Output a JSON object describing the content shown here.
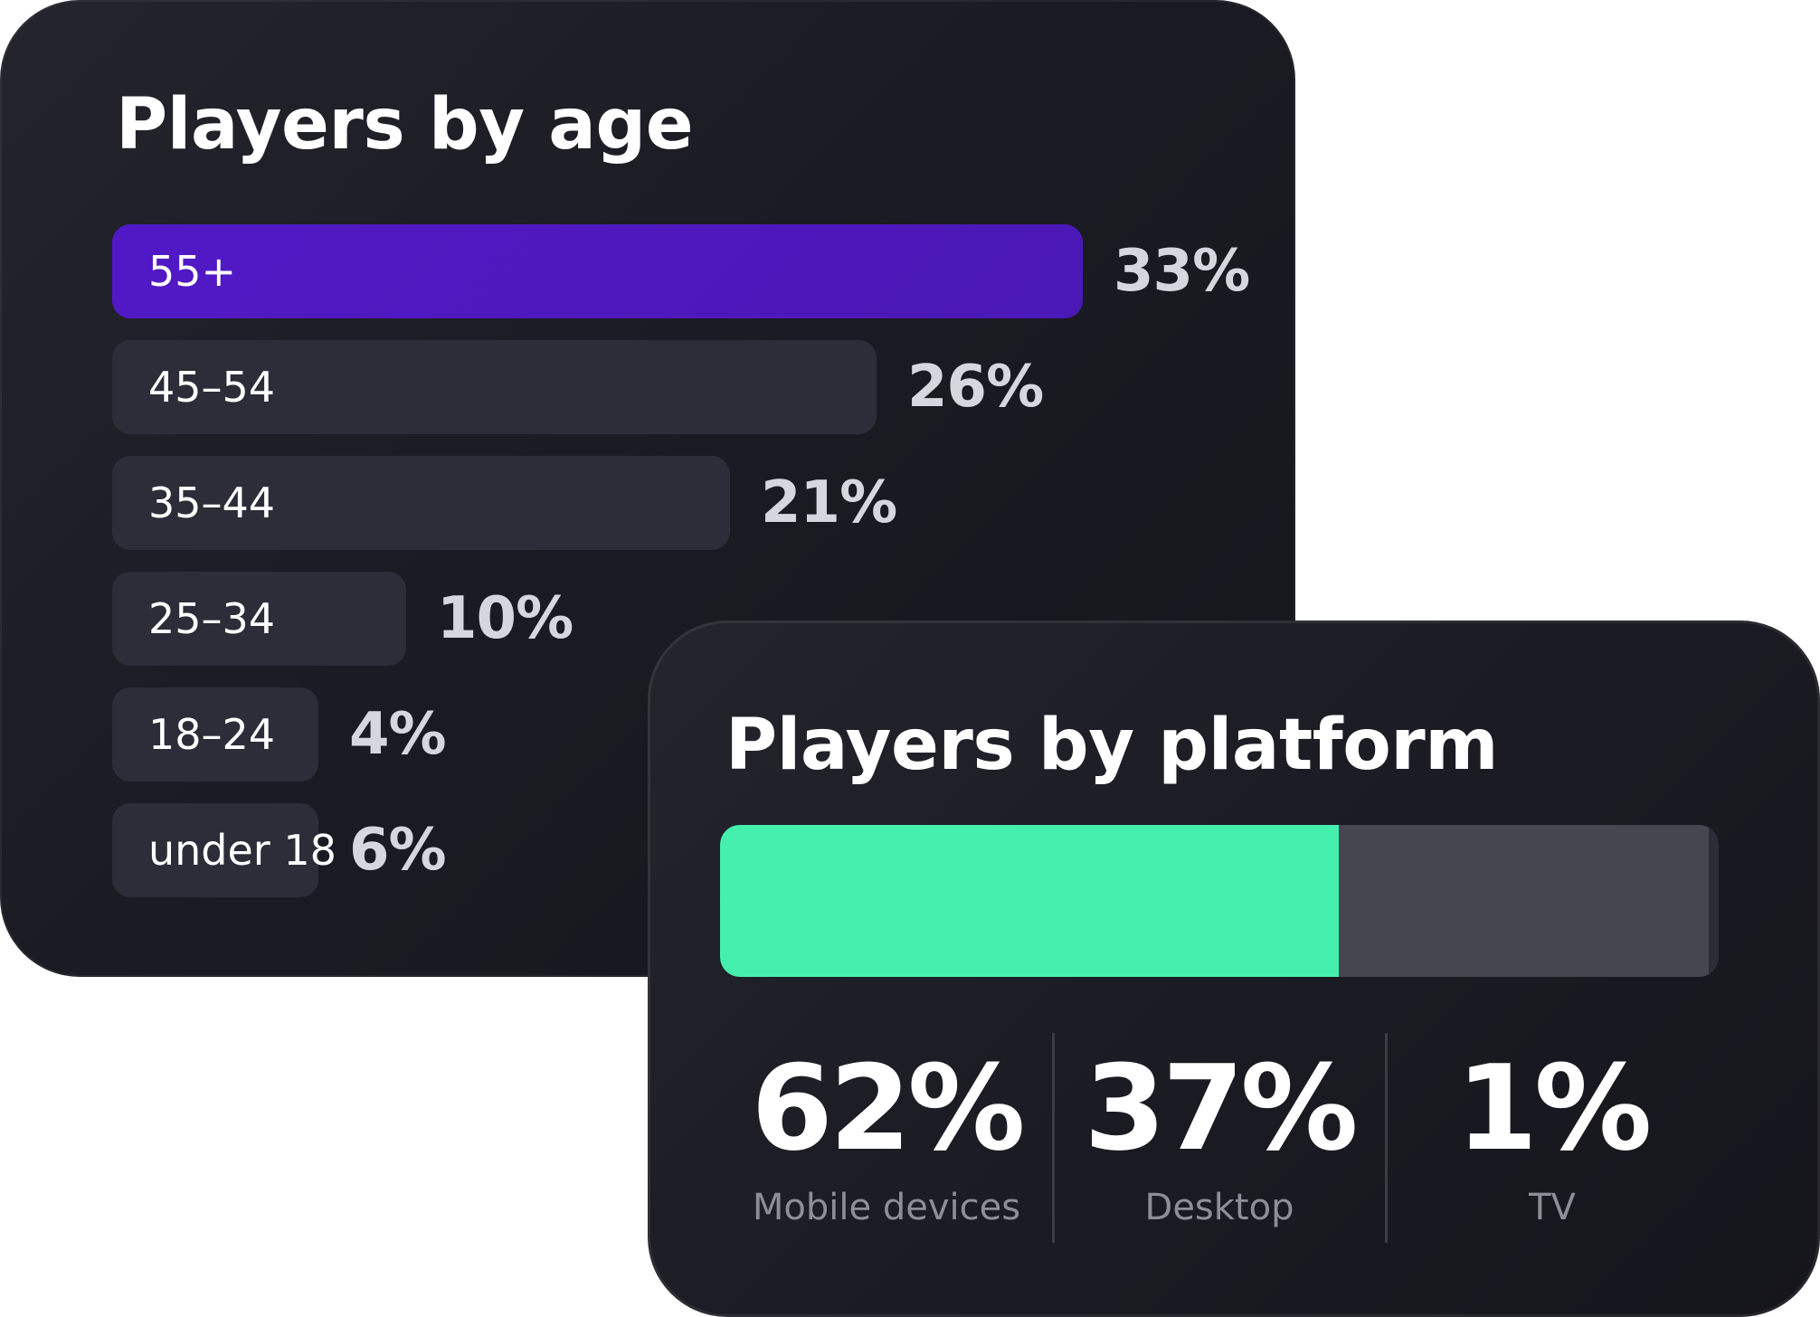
{
  "age_card": {
    "title": "Players by age"
  },
  "platform_card": {
    "title": "Players by platform"
  },
  "chart_data": [
    {
      "type": "bar",
      "orientation": "horizontal",
      "title": "Players by age",
      "categories": [
        "55+",
        "45–54",
        "35–44",
        "25–34",
        "18–24",
        "under 18"
      ],
      "values": [
        33,
        26,
        21,
        10,
        4,
        6
      ],
      "value_labels": [
        "33%",
        "26%",
        "21%",
        "10%",
        "4%",
        "6%"
      ],
      "unit": "%",
      "highlighted_category": "55+",
      "colors": {
        "highlight": "#5119c6",
        "default": "#2d2d39",
        "value_text": "#d6d6df"
      }
    },
    {
      "type": "bar",
      "orientation": "stacked-horizontal",
      "title": "Players by platform",
      "categories": [
        "Mobile devices",
        "Desktop",
        "TV"
      ],
      "values": [
        62,
        37,
        1
      ],
      "value_labels": [
        "62%",
        "37%",
        "1%"
      ],
      "unit": "%",
      "colors": [
        "#45f0ae",
        "#464650",
        "#2d2d38"
      ]
    }
  ]
}
